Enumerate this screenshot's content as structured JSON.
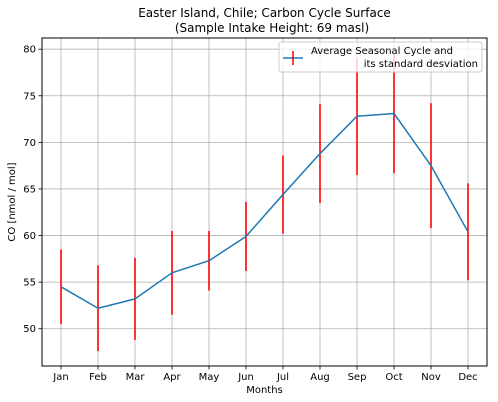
{
  "chart_data": {
    "type": "line",
    "title_line1": "Easter Island, Chile; Carbon Cycle Surface",
    "title_line2": "(Sample Intake Height: 69 masl)",
    "xlabel": "Months",
    "ylabel": "CO [nmol / mol]",
    "categories": [
      "Jan",
      "Feb",
      "Mar",
      "Apr",
      "May",
      "Jun",
      "Jul",
      "Aug",
      "Sep",
      "Oct",
      "Nov",
      "Dec"
    ],
    "series": [
      {
        "name": "Average Seasonal Cycle and its standard desviation",
        "values": [
          54.5,
          52.2,
          53.2,
          56.0,
          57.3,
          59.9,
          64.4,
          68.8,
          72.8,
          73.1,
          67.5,
          60.4
        ],
        "std": [
          4.0,
          4.6,
          4.4,
          4.5,
          3.2,
          3.7,
          4.2,
          5.3,
          6.3,
          6.4,
          6.7,
          5.2
        ],
        "line_color": "#1f77b4",
        "errorbar_color": "#ff0000"
      }
    ],
    "legend_line1": "Average Seasonal Cycle and",
    "legend_line2": "its standard desviation",
    "legend_position": "top-right",
    "ylim": [
      46,
      81.2
    ],
    "yticks": [
      50,
      55,
      60,
      65,
      70,
      75,
      80
    ],
    "grid": true
  }
}
